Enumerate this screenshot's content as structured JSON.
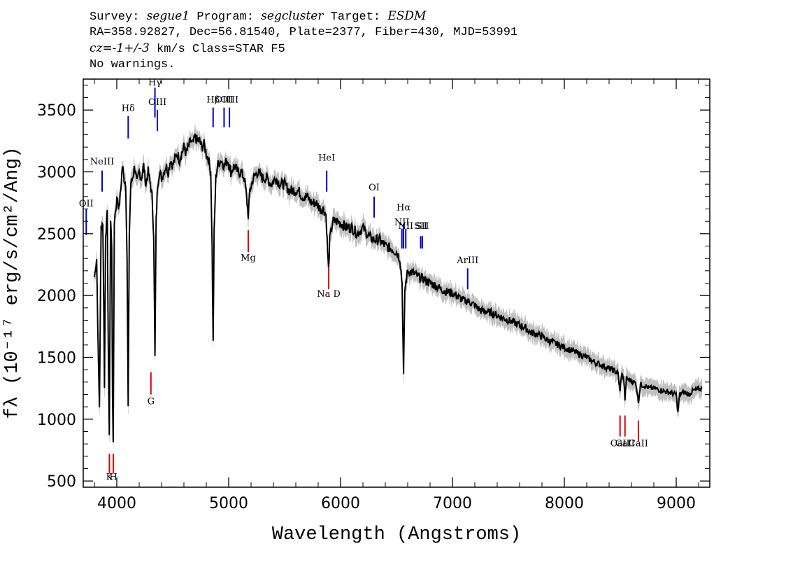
{
  "header": {
    "survey_label": "Survey: ",
    "survey": "segue1",
    "program_label": " Program: ",
    "program": "segcluster",
    "target_label": " Target: ",
    "target": "ESDM",
    "line2": "RA=358.92827, Dec=56.81540, Plate=2377, Fiber=430, MJD=53991",
    "cz": "cz=-1+/-3",
    "line3_rest": " km/s Class=STAR F5",
    "line4": "No warnings."
  },
  "chart_data": {
    "type": "line",
    "title": "Survey: segue1 Program: segcluster Target: ESDM",
    "xlabel": "Wavelength (Angstroms)",
    "ylabel": "fλ (10⁻¹⁷ erg/s/cm²/Ang)",
    "xlim": [
      3700,
      9300
    ],
    "ylim": [
      450,
      3750
    ],
    "xticks": [
      4000,
      5000,
      6000,
      7000,
      8000,
      9000
    ],
    "yticks": [
      500,
      1000,
      1500,
      2000,
      2500,
      3000,
      3500
    ],
    "colors": {
      "flux": "#000000",
      "error": "#c0c0c0",
      "emission": "#0000cc",
      "absorption": "#dd0000"
    },
    "series": [
      {
        "name": "flux",
        "points": [
          [
            3800,
            2150
          ],
          [
            3820,
            2300
          ],
          [
            3835,
            1500
          ],
          [
            3845,
            1100
          ],
          [
            3860,
            2550
          ],
          [
            3875,
            2600
          ],
          [
            3885,
            1800
          ],
          [
            3890,
            1250
          ],
          [
            3900,
            2500
          ],
          [
            3915,
            2650
          ],
          [
            3925,
            1500
          ],
          [
            3933,
            880
          ],
          [
            3945,
            2600
          ],
          [
            3955,
            2400
          ],
          [
            3962,
            1200
          ],
          [
            3968,
            800
          ],
          [
            3978,
            2600
          ],
          [
            3990,
            2700
          ],
          [
            4005,
            2800
          ],
          [
            4020,
            2700
          ],
          [
            4035,
            2850
          ],
          [
            4050,
            3050
          ],
          [
            4065,
            2950
          ],
          [
            4080,
            2900
          ],
          [
            4092,
            2300
          ],
          [
            4102,
            1100
          ],
          [
            4112,
            2500
          ],
          [
            4125,
            2900
          ],
          [
            4140,
            2950
          ],
          [
            4160,
            3050
          ],
          [
            4180,
            2900
          ],
          [
            4200,
            3000
          ],
          [
            4220,
            2950
          ],
          [
            4240,
            3050
          ],
          [
            4260,
            2900
          ],
          [
            4280,
            3000
          ],
          [
            4300,
            2900
          ],
          [
            4315,
            2800
          ],
          [
            4330,
            2500
          ],
          [
            4341,
            1500
          ],
          [
            4352,
            2600
          ],
          [
            4365,
            2900
          ],
          [
            4380,
            3000
          ],
          [
            4400,
            2950
          ],
          [
            4420,
            3000
          ],
          [
            4440,
            3050
          ],
          [
            4460,
            3000
          ],
          [
            4480,
            3100
          ],
          [
            4500,
            3050
          ],
          [
            4520,
            3100
          ],
          [
            4540,
            3150
          ],
          [
            4560,
            3100
          ],
          [
            4580,
            3150
          ],
          [
            4600,
            3200
          ],
          [
            4620,
            3150
          ],
          [
            4640,
            3200
          ],
          [
            4660,
            3250
          ],
          [
            4680,
            3220
          ],
          [
            4700,
            3280
          ],
          [
            4720,
            3250
          ],
          [
            4740,
            3250
          ],
          [
            4760,
            3200
          ],
          [
            4780,
            3220
          ],
          [
            4800,
            3150
          ],
          [
            4820,
            3100
          ],
          [
            4840,
            3000
          ],
          [
            4852,
            2400
          ],
          [
            4861,
            1620
          ],
          [
            4870,
            2500
          ],
          [
            4885,
            2950
          ],
          [
            4900,
            3050
          ],
          [
            4930,
            3100
          ],
          [
            4960,
            3050
          ],
          [
            4990,
            3100
          ],
          [
            5020,
            3000
          ],
          [
            5050,
            3050
          ],
          [
            5080,
            3000
          ],
          [
            5110,
            3000
          ],
          [
            5140,
            2950
          ],
          [
            5160,
            2800
          ],
          [
            5175,
            2650
          ],
          [
            5190,
            2850
          ],
          [
            5220,
            2950
          ],
          [
            5260,
            3000
          ],
          [
            5300,
            2950
          ],
          [
            5340,
            2950
          ],
          [
            5380,
            2900
          ],
          [
            5420,
            2950
          ],
          [
            5460,
            2900
          ],
          [
            5500,
            2900
          ],
          [
            5540,
            2850
          ],
          [
            5580,
            2850
          ],
          [
            5620,
            2850
          ],
          [
            5660,
            2800
          ],
          [
            5700,
            2800
          ],
          [
            5740,
            2750
          ],
          [
            5780,
            2750
          ],
          [
            5820,
            2700
          ],
          [
            5850,
            2700
          ],
          [
            5870,
            2650
          ],
          [
            5885,
            2350
          ],
          [
            5893,
            2200
          ],
          [
            5903,
            2450
          ],
          [
            5930,
            2600
          ],
          [
            5970,
            2600
          ],
          [
            6010,
            2580
          ],
          [
            6050,
            2550
          ],
          [
            6100,
            2550
          ],
          [
            6150,
            2500
          ],
          [
            6200,
            2550
          ],
          [
            6250,
            2480
          ],
          [
            6300,
            2450
          ],
          [
            6350,
            2450
          ],
          [
            6400,
            2400
          ],
          [
            6450,
            2380
          ],
          [
            6500,
            2350
          ],
          [
            6530,
            2300
          ],
          [
            6550,
            2100
          ],
          [
            6563,
            1350
          ],
          [
            6575,
            2050
          ],
          [
            6600,
            2200
          ],
          [
            6650,
            2180
          ],
          [
            6700,
            2150
          ],
          [
            6750,
            2130
          ],
          [
            6800,
            2100
          ],
          [
            6850,
            2080
          ],
          [
            6900,
            2050
          ],
          [
            6950,
            2030
          ],
          [
            7000,
            2020
          ],
          [
            7050,
            1990
          ],
          [
            7100,
            1960
          ],
          [
            7150,
            1950
          ],
          [
            7200,
            1920
          ],
          [
            7250,
            1880
          ],
          [
            7300,
            1870
          ],
          [
            7350,
            1860
          ],
          [
            7400,
            1840
          ],
          [
            7450,
            1820
          ],
          [
            7500,
            1800
          ],
          [
            7550,
            1780
          ],
          [
            7600,
            1760
          ],
          [
            7650,
            1740
          ],
          [
            7700,
            1700
          ],
          [
            7750,
            1690
          ],
          [
            7800,
            1670
          ],
          [
            7850,
            1640
          ],
          [
            7900,
            1620
          ],
          [
            7950,
            1600
          ],
          [
            8000,
            1580
          ],
          [
            8050,
            1560
          ],
          [
            8100,
            1540
          ],
          [
            8150,
            1520
          ],
          [
            8200,
            1500
          ],
          [
            8250,
            1470
          ],
          [
            8300,
            1450
          ],
          [
            8350,
            1430
          ],
          [
            8400,
            1410
          ],
          [
            8450,
            1390
          ],
          [
            8480,
            1370
          ],
          [
            8498,
            1220
          ],
          [
            8510,
            1360
          ],
          [
            8530,
            1340
          ],
          [
            8542,
            1160
          ],
          [
            8555,
            1330
          ],
          [
            8600,
            1310
          ],
          [
            8640,
            1290
          ],
          [
            8662,
            1140
          ],
          [
            8680,
            1280
          ],
          [
            8720,
            1270
          ],
          [
            8760,
            1250
          ],
          [
            8800,
            1250
          ],
          [
            8840,
            1240
          ],
          [
            8880,
            1230
          ],
          [
            8920,
            1220
          ],
          [
            8960,
            1210
          ],
          [
            9000,
            1200
          ],
          [
            9015,
            1050
          ],
          [
            9030,
            1200
          ],
          [
            9070,
            1220
          ],
          [
            9110,
            1200
          ],
          [
            9150,
            1230
          ],
          [
            9200,
            1240
          ],
          [
            9230,
            1250
          ]
        ]
      }
    ],
    "emission_lines": [
      {
        "label": "OII",
        "wave": 3727,
        "ybar": [
          2490,
          2700
        ],
        "ylabel_val": 2720
      },
      {
        "label": "NeIII",
        "wave": 3869,
        "ybar": [
          2840,
          3010
        ],
        "ylabel_val": 3060
      },
      {
        "label": "Hδ",
        "wave": 4102,
        "ybar": [
          3270,
          3450
        ],
        "ylabel_val": 3490
      },
      {
        "label": "Hγ",
        "wave": 4341,
        "ybar": [
          3440,
          3680
        ],
        "ylabel_val": 3700
      },
      {
        "label": "OIII",
        "wave": 4363,
        "ybar": [
          3330,
          3500
        ],
        "ylabel_val": 3540
      },
      {
        "label": "Hβ",
        "wave": 4861,
        "ybar": [
          3360,
          3520
        ],
        "ylabel_val": 3560
      },
      {
        "label": "OIII",
        "wave": 4959,
        "ybar": [
          3360,
          3520
        ],
        "ylabel_val": 3560
      },
      {
        "label": "OIII",
        "wave": 5007,
        "ybar": [
          3360,
          3520
        ],
        "ylabel_val": 3560
      },
      {
        "label": "HeI",
        "wave": 5876,
        "ybar": [
          2840,
          3010
        ],
        "ylabel_val": 3090
      },
      {
        "label": "OI",
        "wave": 6300,
        "ybar": [
          2630,
          2800
        ],
        "ylabel_val": 2850
      },
      {
        "label": "NII",
        "wave": 6548,
        "ybar": [
          2380,
          2540
        ],
        "ylabel_val": 2570
      },
      {
        "label": "Hα",
        "wave": 6563,
        "ybar": [
          2380,
          2580
        ],
        "ylabel_val": 2690
      },
      {
        "label": "NII",
        "wave": 6583,
        "ybar": [
          2380,
          2540
        ],
        "ylabel_val": 2540
      },
      {
        "label": "SII",
        "wave": 6716,
        "ybar": [
          2380,
          2480
        ],
        "ylabel_val": 2540
      },
      {
        "label": "SII",
        "wave": 6731,
        "ybar": [
          2380,
          2480
        ],
        "ylabel_val": 2540
      },
      {
        "label": "ArIII",
        "wave": 7136,
        "ybar": [
          2050,
          2220
        ],
        "ylabel_val": 2260
      }
    ],
    "absorption_lines": [
      {
        "label": "K",
        "wave": 3934,
        "ybar": [
          560,
          720
        ],
        "ylabel_val": 510
      },
      {
        "label": "H",
        "wave": 3969,
        "ybar": [
          560,
          720
        ],
        "ylabel_val": 510
      },
      {
        "label": "G",
        "wave": 4305,
        "ybar": [
          1200,
          1380
        ],
        "ylabel_val": 1120
      },
      {
        "label": "Mg",
        "wave": 5175,
        "ybar": [
          2350,
          2530
        ],
        "ylabel_val": 2280
      },
      {
        "label": "Na D",
        "wave": 5894,
        "ybar": [
          2050,
          2230
        ],
        "ylabel_val": 1990
      },
      {
        "label": "CaII",
        "wave": 8498,
        "ybar": [
          860,
          1030
        ],
        "ylabel_val": 780
      },
      {
        "label": "CaII",
        "wave": 8542,
        "ybar": [
          860,
          1030
        ],
        "ylabel_val": 780
      },
      {
        "label": "CaII",
        "wave": 8662,
        "ybar": [
          820,
          990
        ],
        "ylabel_val": 780
      }
    ]
  }
}
